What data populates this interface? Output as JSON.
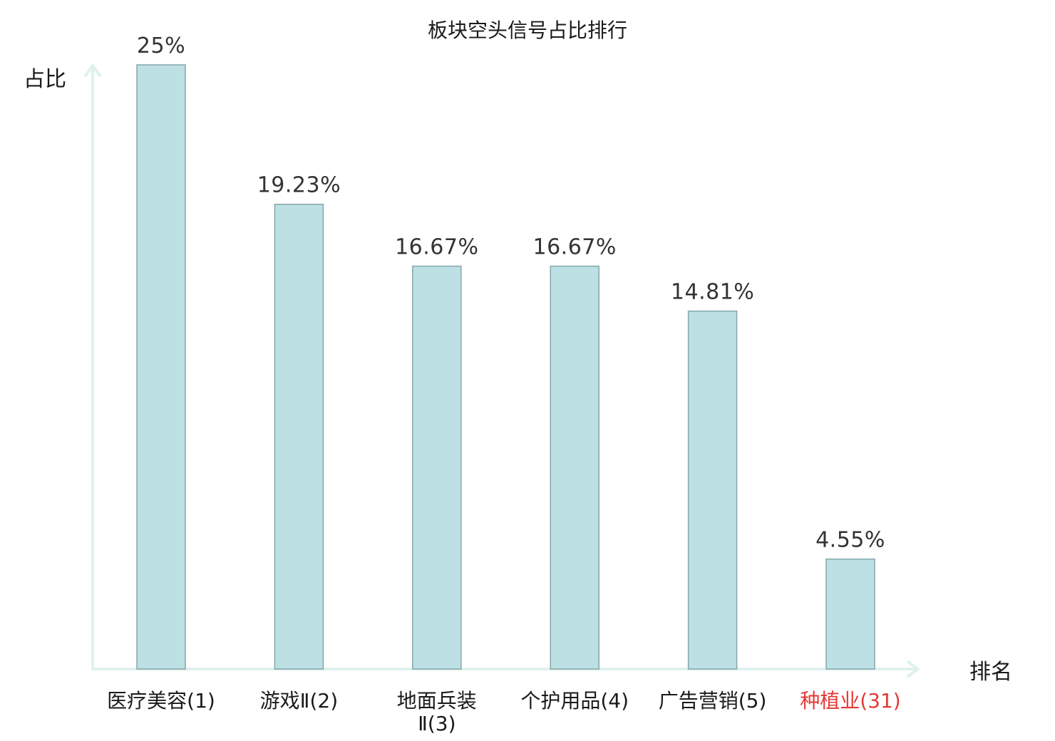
{
  "chart_data": {
    "type": "bar",
    "title": "板块空头信号占比排行",
    "ylabel": "占比",
    "xlabel": "排名",
    "categories": [
      [
        "医疗美容(1)"
      ],
      [
        "游戏Ⅱ(2)"
      ],
      [
        "地面兵装",
        "Ⅱ(3)"
      ],
      [
        "个护用品(4)"
      ],
      [
        "广告营销(5)"
      ],
      [
        "种植业(31)"
      ]
    ],
    "values": [
      25,
      19.23,
      16.67,
      16.67,
      14.81,
      4.55
    ],
    "value_labels": [
      "25%",
      "19.23%",
      "16.67%",
      "16.67%",
      "14.81%",
      "4.55%"
    ],
    "highlight_index": 5,
    "ylim": [
      0,
      25
    ],
    "grid": false,
    "colors": {
      "bar_fill": "#bce0e3",
      "bar_stroke": "#86a7aa",
      "axis": "#dff1ee",
      "highlight": "#e53935"
    }
  }
}
